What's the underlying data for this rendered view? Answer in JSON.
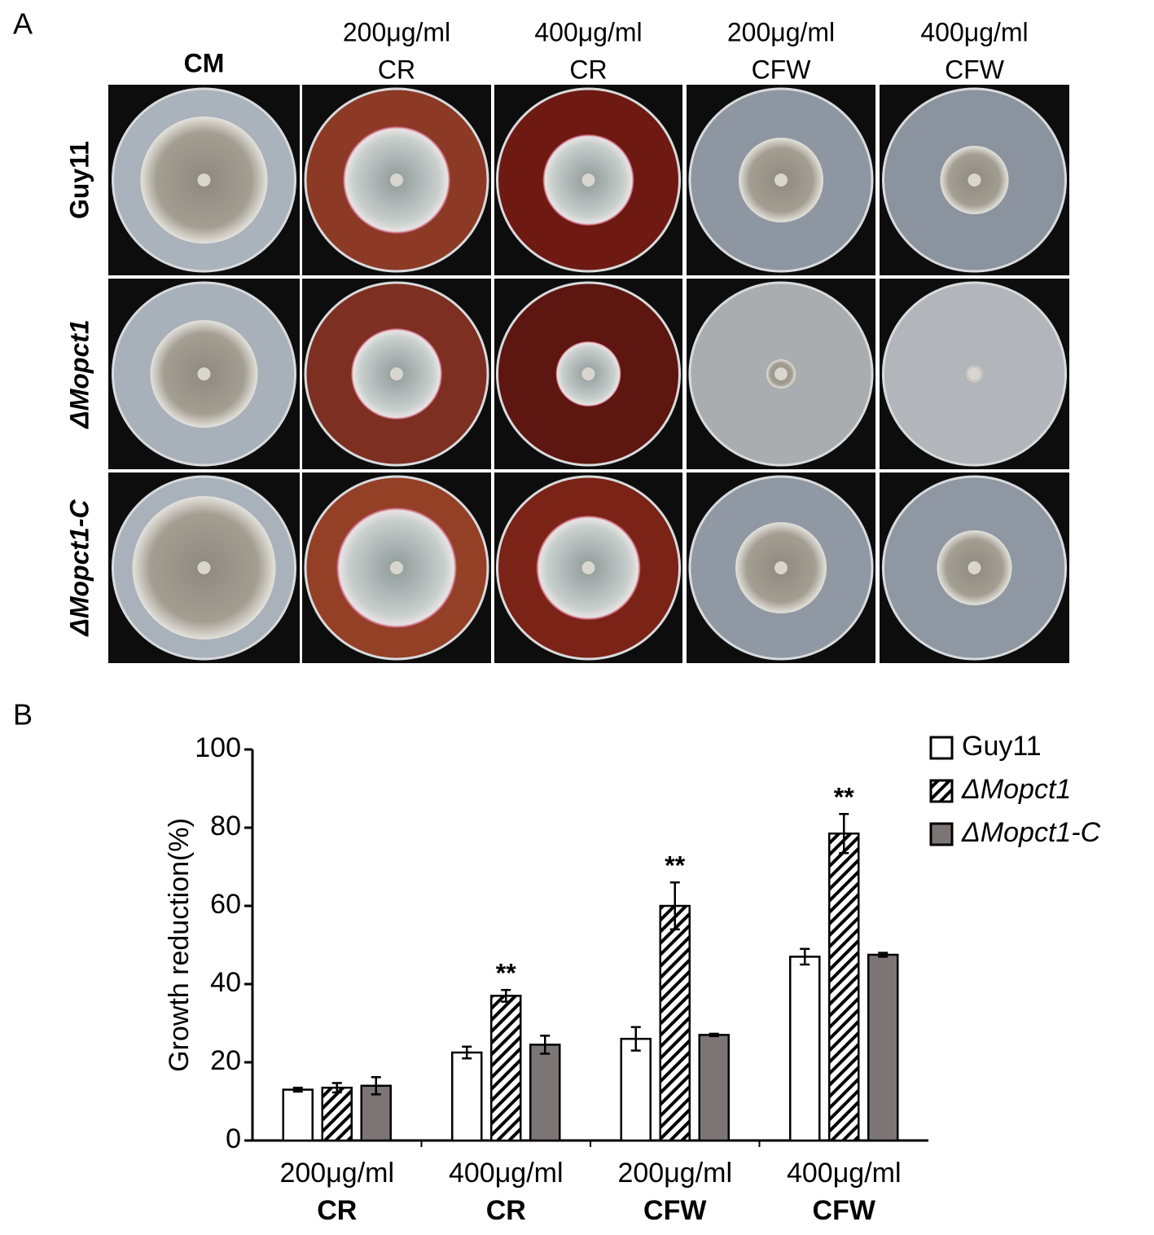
{
  "panel_a": {
    "label": "A",
    "columns": [
      [
        "CM"
      ],
      [
        "200μg/ml",
        "CR"
      ],
      [
        "400μg/ml",
        "CR"
      ],
      [
        "200μg/ml",
        "CFW"
      ],
      [
        "400μg/ml",
        "CFW"
      ]
    ],
    "rows": [
      "Guy11",
      "ΔMopct1",
      "ΔMopct1-C"
    ]
  },
  "panel_b": {
    "label": "B"
  },
  "chart_data": {
    "type": "bar",
    "ylabel": "Growth reduction(%)",
    "categories": [
      [
        "200μg/ml",
        "CR"
      ],
      [
        "400μg/ml",
        "CR"
      ],
      [
        "200μg/ml",
        "CFW"
      ],
      [
        "400μg/ml",
        "CFW"
      ]
    ],
    "series": [
      {
        "name": "Guy11",
        "color": "#ffffff",
        "values": [
          13,
          22.5,
          26,
          47
        ],
        "errors": [
          0.5,
          1.5,
          3,
          2
        ]
      },
      {
        "name": "ΔMopct1",
        "color": "#ffffff",
        "hatch": true,
        "values": [
          13.5,
          37,
          60,
          78.5
        ],
        "errors": [
          1.2,
          1.5,
          6,
          5
        ],
        "significance": [
          null,
          "**",
          "**",
          "**"
        ]
      },
      {
        "name": "ΔMopct1-C",
        "color": "#7b7576",
        "values": [
          14,
          24.5,
          27,
          47.5
        ],
        "errors": [
          2.2,
          2.3,
          0.3,
          0.5
        ]
      }
    ],
    "ylim": [
      0,
      100
    ],
    "yticks": [
      0,
      20,
      40,
      60,
      80,
      100
    ],
    "grid": false,
    "legend": "top-right"
  }
}
